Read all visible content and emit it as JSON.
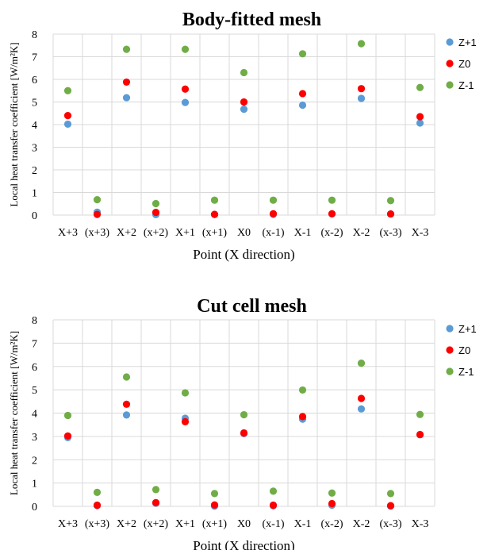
{
  "colors": {
    "Z+1": "#5b9bd5",
    "Z0": "#ff0000",
    "Z-1": "#70ad47",
    "grid": "#d9d9d9"
  },
  "chart_data": [
    {
      "type": "scatter",
      "title": "Body-fitted mesh",
      "xlabel": "Point (X direction)",
      "ylabel": "Local heat transfer coefficient [W/m²K]",
      "ylim": [
        0,
        8
      ],
      "yticks": [
        "0",
        "1",
        "2",
        "3",
        "4",
        "5",
        "6",
        "7",
        "8"
      ],
      "categories": [
        "X+3",
        "(x+3)",
        "X+2",
        "(x+2)",
        "X+1",
        "(x+1)",
        "X0",
        "(x-1)",
        "X-1",
        "(x-2)",
        "X-2",
        "(x-3)",
        "X-3"
      ],
      "grid": true,
      "legend": "right",
      "series": [
        {
          "name": "Z+1",
          "color": "#5b9bd5",
          "values": [
            4.02,
            0.13,
            5.19,
            0.02,
            4.98,
            0.03,
            4.68,
            0.03,
            4.86,
            0.05,
            5.16,
            0.05,
            4.07
          ]
        },
        {
          "name": "Z0",
          "color": "#ff0000",
          "values": [
            4.4,
            0.03,
            5.88,
            0.12,
            5.57,
            0.03,
            5.0,
            0.06,
            5.37,
            0.06,
            5.59,
            0.05,
            4.35
          ]
        },
        {
          "name": "Z-1",
          "color": "#70ad47",
          "values": [
            5.5,
            0.68,
            7.33,
            0.51,
            7.33,
            0.66,
            6.3,
            0.66,
            7.13,
            0.66,
            7.58,
            0.64,
            5.64
          ]
        }
      ]
    },
    {
      "type": "scatter",
      "title": "Cut cell mesh",
      "xlabel": "Point (X direction)",
      "ylabel": "Local heat transfer coefficient [W/m²K]",
      "ylim": [
        0,
        8
      ],
      "yticks": [
        "0",
        "1",
        "2",
        "3",
        "4",
        "5",
        "6",
        "7",
        "8"
      ],
      "categories": [
        "X+3",
        "(x+3)",
        "X+2",
        "(x+2)",
        "X+1",
        "(x+1)",
        "X0",
        "(x-1)",
        "X-1",
        "(x-2)",
        "X-2",
        "(x-3)",
        "X-3"
      ],
      "grid": true,
      "legend": "right",
      "series": [
        {
          "name": "Z+1",
          "color": "#5b9bd5",
          "values": [
            2.95,
            0.03,
            3.92,
            0.13,
            3.78,
            0.01,
            3.12,
            0.02,
            3.74,
            0.05,
            4.18,
            0.01,
            3.07
          ]
        },
        {
          "name": "Z0",
          "color": "#ff0000",
          "values": [
            3.02,
            0.05,
            4.38,
            0.16,
            3.63,
            0.06,
            3.15,
            0.05,
            3.85,
            0.12,
            4.63,
            0.03,
            3.08
          ]
        },
        {
          "name": "Z-1",
          "color": "#70ad47",
          "values": [
            3.9,
            0.6,
            5.55,
            0.72,
            4.87,
            0.55,
            3.93,
            0.65,
            4.99,
            0.57,
            6.14,
            0.55,
            3.94
          ]
        }
      ]
    }
  ]
}
